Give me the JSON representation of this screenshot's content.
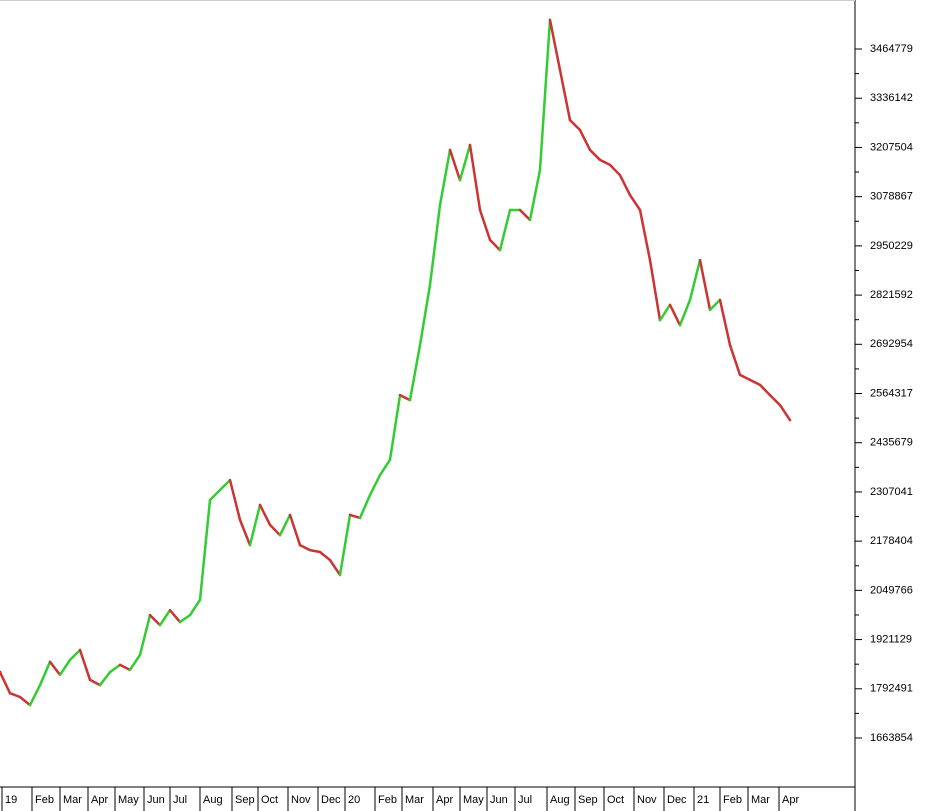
{
  "chart_data": {
    "type": "line",
    "values": [
      1836000,
      1781000,
      1771000,
      1750000,
      1802000,
      1863000,
      1829000,
      1868000,
      1894000,
      1816000,
      1802000,
      1836000,
      1855000,
      1842000,
      1881000,
      1985000,
      1959000,
      1998000,
      1967000,
      1985000,
      2025000,
      2286000,
      2312000,
      2338000,
      2234000,
      2168000,
      2273000,
      2221000,
      2194000,
      2247000,
      2168000,
      2155000,
      2150000,
      2129000,
      2090000,
      2247000,
      2239000,
      2299000,
      2351000,
      2391000,
      2560000,
      2547000,
      2691000,
      2848000,
      3057000,
      3201000,
      3122000,
      3214000,
      3044000,
      2966000,
      2939000,
      3044000,
      3044000,
      3018000,
      3149000,
      3541000,
      3410000,
      3279000,
      3253000,
      3201000,
      3175000,
      3162000,
      3135000,
      3083000,
      3044000,
      2913000,
      2756000,
      2796000,
      2743000,
      2809000,
      2913000,
      2783000,
      2809000,
      2691000,
      2613000,
      2600000,
      2587000,
      2560000,
      2534000,
      2495000
    ],
    "up_color": "#33cc33",
    "down_color": "#cc3333",
    "xlim": [
      0,
      85.5
    ],
    "xticks": [
      {
        "value": 0.2,
        "label": "19"
      },
      {
        "value": 3.2,
        "label": "Feb"
      },
      {
        "value": 6.0,
        "label": "Mar"
      },
      {
        "value": 8.8,
        "label": "Apr"
      },
      {
        "value": 11.5,
        "label": "May"
      },
      {
        "value": 14.4,
        "label": "Jun"
      },
      {
        "value": 17.0,
        "label": "Jul"
      },
      {
        "value": 20.0,
        "label": "Aug"
      },
      {
        "value": 23.2,
        "label": "Sep"
      },
      {
        "value": 25.8,
        "label": "Oct"
      },
      {
        "value": 28.8,
        "label": "Nov"
      },
      {
        "value": 31.8,
        "label": "Dec"
      },
      {
        "value": 34.5,
        "label": "20"
      },
      {
        "value": 37.5,
        "label": "Feb"
      },
      {
        "value": 40.2,
        "label": "Mar"
      },
      {
        "value": 43.3,
        "label": "Apr"
      },
      {
        "value": 46.0,
        "label": "May"
      },
      {
        "value": 48.7,
        "label": "Jun"
      },
      {
        "value": 51.5,
        "label": "Jul"
      },
      {
        "value": 54.7,
        "label": "Aug"
      },
      {
        "value": 57.5,
        "label": "Sep"
      },
      {
        "value": 60.4,
        "label": "Oct"
      },
      {
        "value": 63.4,
        "label": "Nov"
      },
      {
        "value": 66.4,
        "label": "Dec"
      },
      {
        "value": 69.4,
        "label": "21"
      },
      {
        "value": 72.0,
        "label": "Feb"
      },
      {
        "value": 74.8,
        "label": "Mar"
      },
      {
        "value": 77.9,
        "label": "Apr"
      }
    ],
    "ylim": [
      1535800,
      3592900
    ],
    "yticks": [
      1663854,
      1792491,
      1921129,
      2049766,
      2178404,
      2307041,
      2435679,
      2564317,
      2692954,
      2821592,
      2950229,
      3078867,
      3207504,
      3336142,
      3464779
    ],
    "y_axis_side": "right"
  }
}
